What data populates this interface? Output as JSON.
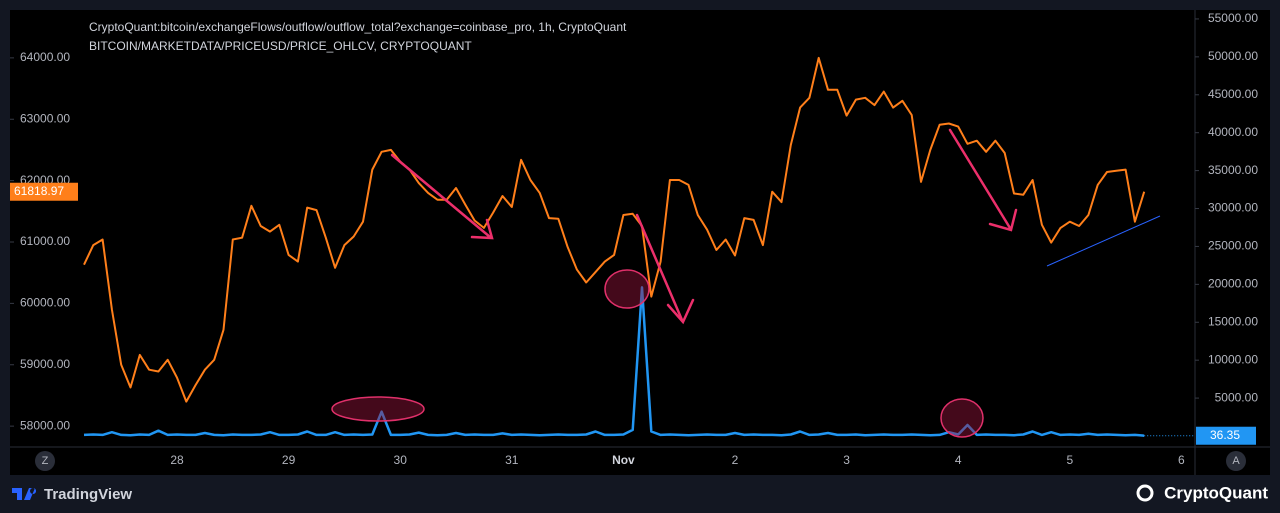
{
  "chart_data": {
    "type": "line",
    "categories": [
      null,
      null,
      null,
      null,
      null,
      null,
      null,
      null,
      null,
      null,
      "28",
      null,
      null,
      null,
      null,
      null,
      null,
      null,
      null,
      null,
      null,
      null,
      "29",
      null,
      null,
      null,
      null,
      null,
      null,
      null,
      null,
      null,
      null,
      null,
      "30",
      null,
      null,
      null,
      null,
      null,
      null,
      null,
      null,
      null,
      null,
      null,
      "31",
      null,
      null,
      null,
      null,
      null,
      null,
      null,
      null,
      null,
      null,
      null,
      "Nov",
      null,
      null,
      null,
      null,
      null,
      null,
      null,
      null,
      null,
      null,
      null,
      "2",
      null,
      null,
      null,
      null,
      null,
      null,
      null,
      null,
      null,
      null,
      null,
      "3",
      null,
      null,
      null,
      null,
      null,
      null,
      null,
      null,
      null,
      null,
      null,
      "4",
      null,
      null,
      null,
      null,
      null,
      null,
      null,
      null,
      null,
      null,
      null,
      "5",
      null,
      null,
      null,
      null,
      null,
      null,
      null,
      null,
      null,
      null,
      null,
      "6",
      null
    ],
    "series": [
      {
        "name": "CryptoQuant:bitcoin/exchangeFlows/outflow/outflow_total?exchange=coinbase_pro, 1h, CryptoQuant",
        "color": "#2196f3",
        "axis": "y2",
        "values": [
          150,
          200,
          150,
          500,
          150,
          100,
          200,
          150,
          700,
          150,
          200,
          150,
          150,
          400,
          150,
          100,
          200,
          150,
          150,
          200,
          500,
          150,
          150,
          200,
          600,
          150,
          150,
          500,
          150,
          200,
          150,
          200,
          3200,
          150,
          150,
          200,
          450,
          150,
          100,
          150,
          400,
          150,
          200,
          150,
          150,
          350,
          150,
          200,
          150,
          100,
          150,
          200,
          150,
          150,
          200,
          600,
          150,
          150,
          200,
          800,
          19600,
          600,
          150,
          200,
          150,
          100,
          150,
          200,
          150,
          150,
          400,
          150,
          200,
          150,
          150,
          100,
          200,
          600,
          150,
          200,
          400,
          150,
          150,
          200,
          100,
          150,
          200,
          150,
          150,
          200,
          150,
          100,
          150,
          500,
          200,
          1450,
          150,
          200,
          150,
          150,
          100,
          200,
          600,
          150,
          500,
          150,
          200,
          150,
          300,
          150,
          200,
          150,
          100,
          150,
          36.35,
          null,
          null,
          null,
          null,
          null
        ]
      },
      {
        "name": "BITCOIN/MARKETDATA/PRICEUSD/PRICE_OHLCV, CRYPTOQUANT",
        "color": "#ff7f1a",
        "values": [
          60630,
          60950,
          61040,
          59900,
          59000,
          58630,
          59160,
          58920,
          58890,
          59080,
          58790,
          58400,
          58670,
          58920,
          59080,
          59570,
          61040,
          61070,
          61590,
          61260,
          61170,
          61280,
          60790,
          60680,
          61560,
          61520,
          61070,
          60580,
          60950,
          61090,
          61330,
          62180,
          62470,
          62500,
          62310,
          62180,
          61960,
          61800,
          61690,
          61690,
          61880,
          61610,
          61350,
          61230,
          61480,
          61750,
          61570,
          62340,
          62010,
          61800,
          61390,
          61380,
          60920,
          60550,
          60340,
          60510,
          60680,
          60790,
          61440,
          61460,
          61260,
          60110,
          60680,
          62010,
          62010,
          61930,
          61440,
          61200,
          60870,
          61040,
          60780,
          61390,
          61360,
          60950,
          61820,
          61650,
          62580,
          63190,
          63350,
          64000,
          63480,
          63480,
          63060,
          63320,
          63350,
          63230,
          63450,
          63190,
          63300,
          63070,
          61980,
          62500,
          62910,
          62930,
          62880,
          62600,
          62650,
          62470,
          62650,
          62450,
          61790,
          61770,
          62010,
          61280,
          60990,
          61230,
          61330,
          61260,
          61440,
          61930,
          62140,
          62160,
          62180,
          61330,
          61818.97,
          null,
          null,
          null,
          null,
          null
        ]
      }
    ],
    "ylim": [
      57660,
      64780
    ],
    "yticks": [
      {
        "value": 58000,
        "label": "58000.00"
      },
      {
        "value": 59000,
        "label": "59000.00"
      },
      {
        "value": 60000,
        "label": "60000.00"
      },
      {
        "value": 61000,
        "label": "61000.00"
      },
      {
        "value": 62000,
        "label": "62000.00"
      },
      {
        "value": 63000,
        "label": "63000.00"
      },
      {
        "value": 64000,
        "label": "64000.00"
      }
    ],
    "y2lim": [
      -1450,
      56180
    ],
    "y2ticks": [
      {
        "value": 5000,
        "label": "5000.00"
      },
      {
        "value": 10000,
        "label": "10000.00"
      },
      {
        "value": 15000,
        "label": "15000.00"
      },
      {
        "value": 20000,
        "label": "20000.00"
      },
      {
        "value": 25000,
        "label": "25000.00"
      },
      {
        "value": 30000,
        "label": "30000.00"
      },
      {
        "value": 35000,
        "label": "35000.00"
      },
      {
        "value": 40000,
        "label": "40000.00"
      },
      {
        "value": 45000,
        "label": "45000.00"
      },
      {
        "value": 50000,
        "label": "50000.00"
      },
      {
        "value": 55000,
        "label": "55000.00"
      }
    ],
    "grid": false
  },
  "axis_buttons": [
    "Z",
    "A"
  ],
  "footer": {
    "left": "TradingView",
    "right": "CryptoQuant"
  }
}
